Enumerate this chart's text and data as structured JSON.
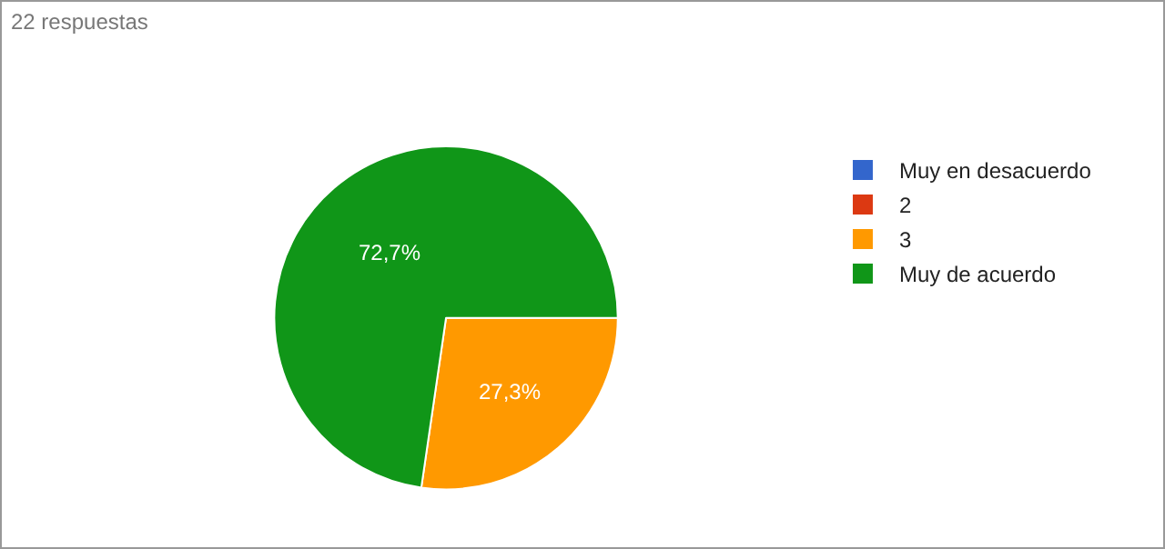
{
  "chart_data": {
    "type": "pie",
    "annotations": [
      "22 respuestas"
    ],
    "categories": [
      "Muy en desacuerdo",
      "2",
      "3",
      "Muy de acuerdo"
    ],
    "values": [
      0,
      0,
      27.3,
      72.7
    ],
    "value_labels": [
      null,
      null,
      "27,3%",
      "72,7%"
    ],
    "colors": [
      "#3366cc",
      "#dc3912",
      "#ff9900",
      "#109618"
    ],
    "legend": "right"
  }
}
